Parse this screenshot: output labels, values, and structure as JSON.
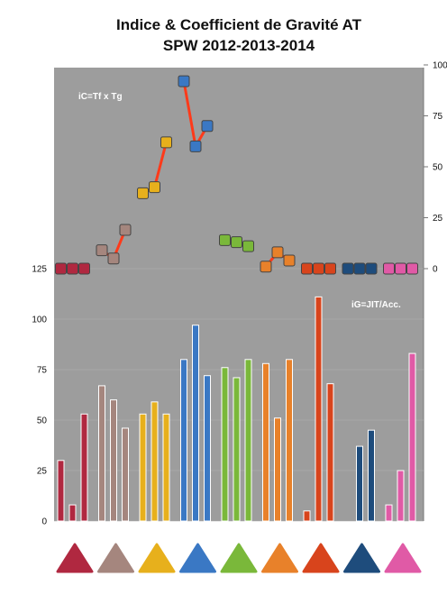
{
  "chart_data": {
    "type": "bar",
    "title_lines": [
      "Indice & Coefficient de Gravité AT",
      "SPW 2012-2013-2014"
    ],
    "annotation_top": "iC=Tf x Tg",
    "annotation_bottom": "iG=JIT/Acc.",
    "background": "#9d9d9d",
    "bar_axis": {
      "ylim": [
        0,
        125
      ],
      "ticks": [
        "0",
        "25",
        "50",
        "75",
        "100",
        "125"
      ]
    },
    "index_axis": {
      "ylim": [
        0,
        100
      ],
      "ticks": [
        "0",
        "25",
        "50",
        "75",
        "100"
      ]
    },
    "years": [
      2012,
      2013,
      2014
    ],
    "groups": [
      {
        "color": "#b02840",
        "bars": [
          30,
          8,
          53
        ],
        "index": [
          0,
          0,
          0
        ]
      },
      {
        "color": "#a5867e",
        "bars": [
          67,
          60,
          46
        ],
        "index": [
          9,
          5,
          19
        ]
      },
      {
        "color": "#e7b01c",
        "bars": [
          53,
          59,
          53
        ],
        "index": [
          37,
          40,
          62
        ]
      },
      {
        "color": "#3a78c4",
        "bars": [
          80,
          97,
          72
        ],
        "index": [
          92,
          60,
          70
        ]
      },
      {
        "color": "#7ab83a",
        "bars": [
          76,
          71,
          80
        ],
        "index": [
          14,
          13,
          11
        ]
      },
      {
        "color": "#e8812a",
        "bars": [
          78,
          51,
          80
        ],
        "index": [
          1,
          8,
          4
        ]
      },
      {
        "color": "#d8441c",
        "bars": [
          5,
          111,
          68
        ],
        "index": [
          0,
          0,
          0
        ]
      },
      {
        "color": "#1e4c7c",
        "bars": [
          0,
          37,
          45
        ],
        "index": [
          0,
          0,
          0
        ]
      },
      {
        "color": "#e05aa6",
        "bars": [
          8,
          25,
          83
        ],
        "index": [
          0,
          0,
          0
        ]
      }
    ],
    "line_color": "#ff3a1a"
  }
}
